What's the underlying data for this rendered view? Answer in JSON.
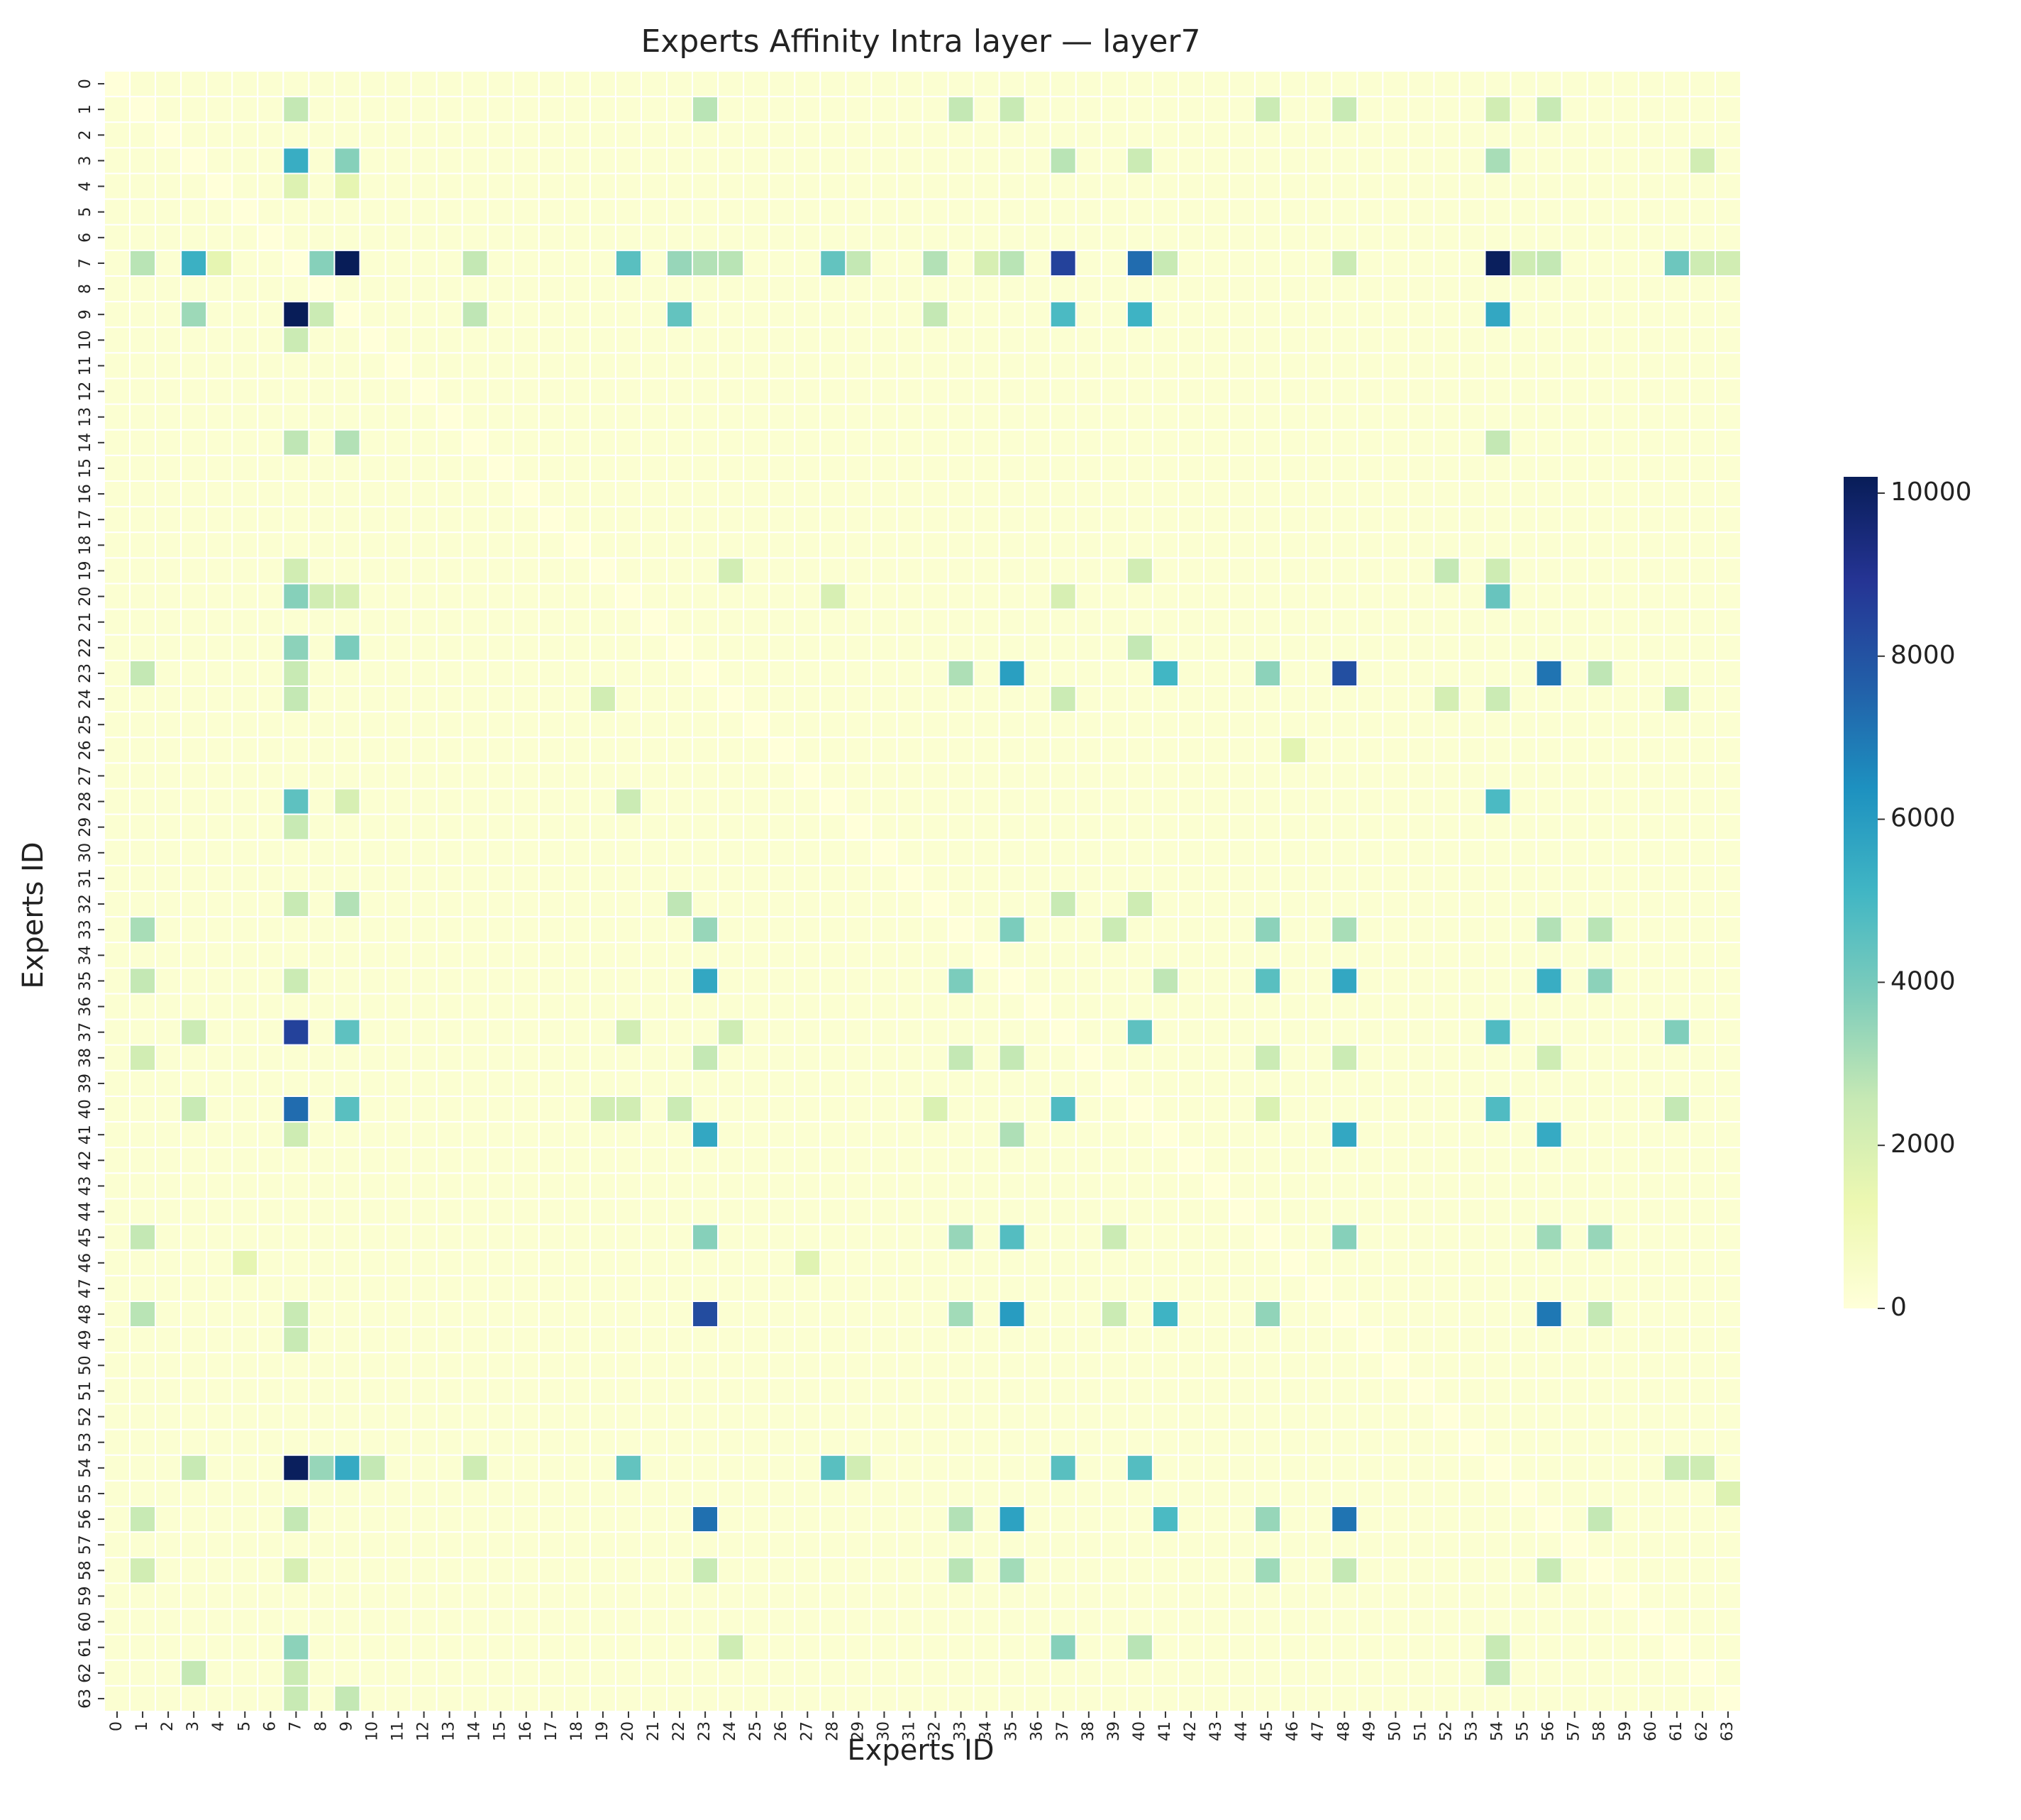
{
  "chart_data": {
    "type": "heatmap",
    "title": "Experts Affinity Intra layer — layer7",
    "xlabel": "Experts ID",
    "ylabel": "Experts ID",
    "x_ticks": [
      "0",
      "1",
      "2",
      "3",
      "4",
      "5",
      "6",
      "7",
      "8",
      "9",
      "10",
      "11",
      "12",
      "13",
      "14",
      "15",
      "16",
      "17",
      "18",
      "19",
      "20",
      "21",
      "22",
      "23",
      "24",
      "25",
      "26",
      "27",
      "28",
      "29",
      "30",
      "31",
      "32",
      "33",
      "34",
      "35",
      "36",
      "37",
      "38",
      "39",
      "40",
      "41",
      "42",
      "43",
      "44",
      "45",
      "46",
      "47",
      "48",
      "49",
      "50",
      "51",
      "52",
      "53",
      "54",
      "55",
      "56",
      "57",
      "58",
      "59",
      "60",
      "61",
      "62",
      "63"
    ],
    "y_ticks": [
      "0",
      "1",
      "2",
      "3",
      "4",
      "5",
      "6",
      "7",
      "8",
      "9",
      "10",
      "11",
      "12",
      "13",
      "14",
      "15",
      "16",
      "17",
      "18",
      "19",
      "20",
      "21",
      "22",
      "23",
      "24",
      "25",
      "26",
      "27",
      "28",
      "29",
      "30",
      "31",
      "32",
      "33",
      "34",
      "35",
      "36",
      "37",
      "38",
      "39",
      "40",
      "41",
      "42",
      "43",
      "44",
      "45",
      "46",
      "47",
      "48",
      "49",
      "50",
      "51",
      "52",
      "53",
      "54",
      "55",
      "56",
      "57",
      "58",
      "59",
      "60",
      "61",
      "62",
      "63"
    ],
    "n": 64,
    "background_value": 250,
    "colorbar": {
      "ticks": [
        "0",
        "2000",
        "4000",
        "6000",
        "8000",
        "10000"
      ],
      "min": 0,
      "max": 10200,
      "colormap": "YlGnBu"
    },
    "cells": [
      [
        7,
        9,
        10200
      ],
      [
        7,
        37,
        8500
      ],
      [
        7,
        40,
        7300
      ],
      [
        7,
        54,
        10100
      ],
      [
        7,
        3,
        5300
      ],
      [
        7,
        20,
        4600
      ],
      [
        7,
        28,
        4400
      ],
      [
        7,
        61,
        4200
      ],
      [
        7,
        8,
        3700
      ],
      [
        7,
        22,
        3400
      ],
      [
        7,
        1,
        2800
      ],
      [
        7,
        23,
        2900
      ],
      [
        7,
        24,
        2800
      ],
      [
        7,
        14,
        2600
      ],
      [
        7,
        32,
        2900
      ],
      [
        7,
        35,
        2800
      ],
      [
        7,
        41,
        2500
      ],
      [
        7,
        55,
        2300
      ],
      [
        7,
        56,
        2600
      ],
      [
        7,
        48,
        2400
      ],
      [
        7,
        29,
        2600
      ],
      [
        7,
        62,
        2300
      ],
      [
        7,
        63,
        2200
      ],
      [
        7,
        34,
        2000
      ],
      [
        7,
        4,
        1500
      ],
      [
        7,
        7,
        0
      ],
      [
        9,
        7,
        10200
      ],
      [
        10,
        7,
        2400
      ],
      [
        54,
        7,
        10100
      ],
      [
        54,
        8,
        3400
      ],
      [
        54,
        9,
        5500
      ],
      [
        54,
        10,
        2600
      ],
      [
        54,
        20,
        4400
      ],
      [
        54,
        28,
        4600
      ],
      [
        54,
        29,
        2200
      ],
      [
        54,
        37,
        4600
      ],
      [
        54,
        40,
        4700
      ],
      [
        54,
        3,
        2500
      ],
      [
        54,
        14,
        2300
      ],
      [
        54,
        61,
        2400
      ],
      [
        54,
        62,
        2300
      ],
      [
        37,
        7,
        8500
      ],
      [
        37,
        9,
        4500
      ],
      [
        37,
        40,
        4500
      ],
      [
        37,
        54,
        4800
      ],
      [
        37,
        61,
        3800
      ],
      [
        37,
        3,
        2400
      ],
      [
        37,
        20,
        2200
      ],
      [
        37,
        24,
        2300
      ],
      [
        40,
        7,
        7300
      ],
      [
        40,
        9,
        4600
      ],
      [
        40,
        37,
        4800
      ],
      [
        40,
        54,
        4800
      ],
      [
        40,
        3,
        2500
      ],
      [
        40,
        20,
        2200
      ],
      [
        40,
        19,
        2200
      ],
      [
        40,
        22,
        2400
      ],
      [
        40,
        61,
        2600
      ],
      [
        40,
        32,
        1900
      ],
      [
        9,
        37,
        4900
      ],
      [
        9,
        40,
        5200
      ],
      [
        9,
        54,
        5600
      ],
      [
        9,
        22,
        4400
      ],
      [
        9,
        3,
        3300
      ],
      [
        9,
        14,
        2700
      ],
      [
        9,
        8,
        2400
      ],
      [
        9,
        32,
        2600
      ],
      [
        3,
        7,
        5400
      ],
      [
        3,
        9,
        3700
      ],
      [
        3,
        54,
        3100
      ],
      [
        3,
        37,
        2800
      ],
      [
        3,
        40,
        2400
      ],
      [
        3,
        62,
        2200
      ],
      [
        4,
        7,
        1800
      ],
      [
        4,
        9,
        1500
      ],
      [
        1,
        7,
        2600
      ],
      [
        1,
        23,
        2800
      ],
      [
        1,
        33,
        2600
      ],
      [
        1,
        35,
        2500
      ],
      [
        1,
        45,
        2400
      ],
      [
        1,
        48,
        2500
      ],
      [
        1,
        56,
        2500
      ],
      [
        1,
        54,
        2200
      ],
      [
        14,
        7,
        2700
      ],
      [
        14,
        9,
        2900
      ],
      [
        14,
        54,
        2600
      ],
      [
        20,
        7,
        3700
      ],
      [
        20,
        54,
        4300
      ],
      [
        20,
        8,
        2200
      ],
      [
        20,
        9,
        2000
      ],
      [
        20,
        28,
        2000
      ],
      [
        20,
        37,
        2000
      ],
      [
        19,
        24,
        2200
      ],
      [
        19,
        7,
        2200
      ],
      [
        19,
        40,
        2200
      ],
      [
        19,
        52,
        2600
      ],
      [
        19,
        54,
        2300
      ],
      [
        22,
        7,
        3600
      ],
      [
        22,
        9,
        3900
      ],
      [
        22,
        40,
        2600
      ],
      [
        23,
        35,
        5900
      ],
      [
        23,
        48,
        8100
      ],
      [
        23,
        56,
        7100
      ],
      [
        23,
        41,
        5100
      ],
      [
        23,
        1,
        2600
      ],
      [
        23,
        7,
        2500
      ],
      [
        23,
        33,
        3000
      ],
      [
        23,
        45,
        3600
      ],
      [
        23,
        58,
        2700
      ],
      [
        24,
        7,
        2600
      ],
      [
        24,
        19,
        2200
      ],
      [
        24,
        37,
        2400
      ],
      [
        24,
        52,
        2100
      ],
      [
        24,
        54,
        2400
      ],
      [
        24,
        61,
        2400
      ],
      [
        28,
        7,
        4500
      ],
      [
        28,
        54,
        4900
      ],
      [
        28,
        20,
        2400
      ],
      [
        28,
        9,
        2000
      ],
      [
        29,
        7,
        2500
      ],
      [
        32,
        7,
        2500
      ],
      [
        32,
        9,
        2900
      ],
      [
        32,
        22,
        2700
      ],
      [
        32,
        37,
        2500
      ],
      [
        32,
        40,
        2300
      ],
      [
        33,
        1,
        3100
      ],
      [
        33,
        23,
        3400
      ],
      [
        33,
        35,
        3900
      ],
      [
        33,
        45,
        3600
      ],
      [
        33,
        48,
        3100
      ],
      [
        33,
        56,
        2900
      ],
      [
        33,
        58,
        2800
      ],
      [
        33,
        39,
        2400
      ],
      [
        35,
        23,
        5600
      ],
      [
        35,
        33,
        3900
      ],
      [
        35,
        45,
        4600
      ],
      [
        35,
        48,
        5600
      ],
      [
        35,
        56,
        5400
      ],
      [
        35,
        58,
        3600
      ],
      [
        35,
        1,
        2600
      ],
      [
        35,
        41,
        2700
      ],
      [
        35,
        7,
        2400
      ],
      [
        38,
        1,
        2200
      ],
      [
        38,
        23,
        2600
      ],
      [
        38,
        33,
        2600
      ],
      [
        38,
        35,
        2600
      ],
      [
        38,
        45,
        2400
      ],
      [
        38,
        48,
        2400
      ],
      [
        38,
        56,
        2300
      ],
      [
        40,
        45,
        1900
      ],
      [
        41,
        23,
        5600
      ],
      [
        41,
        48,
        5600
      ],
      [
        41,
        56,
        5500
      ],
      [
        41,
        35,
        3000
      ],
      [
        41,
        7,
        2300
      ],
      [
        45,
        23,
        3700
      ],
      [
        45,
        35,
        4700
      ],
      [
        45,
        48,
        3700
      ],
      [
        45,
        56,
        3300
      ],
      [
        45,
        58,
        3400
      ],
      [
        45,
        33,
        3400
      ],
      [
        45,
        1,
        2600
      ],
      [
        45,
        39,
        2400
      ],
      [
        48,
        23,
        8200
      ],
      [
        48,
        35,
        6000
      ],
      [
        48,
        41,
        5200
      ],
      [
        48,
        56,
        7000
      ],
      [
        48,
        45,
        3500
      ],
      [
        48,
        33,
        3200
      ],
      [
        48,
        1,
        2800
      ],
      [
        48,
        7,
        2500
      ],
      [
        48,
        58,
        2600
      ],
      [
        48,
        39,
        2400
      ],
      [
        49,
        7,
        2500
      ],
      [
        56,
        23,
        7200
      ],
      [
        56,
        35,
        5800
      ],
      [
        56,
        48,
        7100
      ],
      [
        56,
        41,
        4900
      ],
      [
        56,
        45,
        3400
      ],
      [
        56,
        33,
        2900
      ],
      [
        56,
        1,
        2500
      ],
      [
        56,
        7,
        2600
      ],
      [
        56,
        58,
        2600
      ],
      [
        58,
        1,
        2200
      ],
      [
        58,
        7,
        2000
      ],
      [
        58,
        23,
        2500
      ],
      [
        58,
        33,
        2800
      ],
      [
        58,
        35,
        3200
      ],
      [
        58,
        45,
        3300
      ],
      [
        58,
        48,
        2600
      ],
      [
        58,
        56,
        2500
      ],
      [
        61,
        7,
        3600
      ],
      [
        61,
        37,
        3700
      ],
      [
        61,
        40,
        2800
      ],
      [
        61,
        24,
        2300
      ],
      [
        61,
        54,
        2500
      ],
      [
        62,
        3,
        2600
      ],
      [
        62,
        7,
        2400
      ],
      [
        62,
        54,
        2700
      ],
      [
        63,
        7,
        2500
      ],
      [
        63,
        9,
        2600
      ],
      [
        46,
        27,
        1700
      ],
      [
        26,
        46,
        1600
      ],
      [
        55,
        63,
        1800
      ],
      [
        46,
        5,
        1500
      ]
    ]
  }
}
